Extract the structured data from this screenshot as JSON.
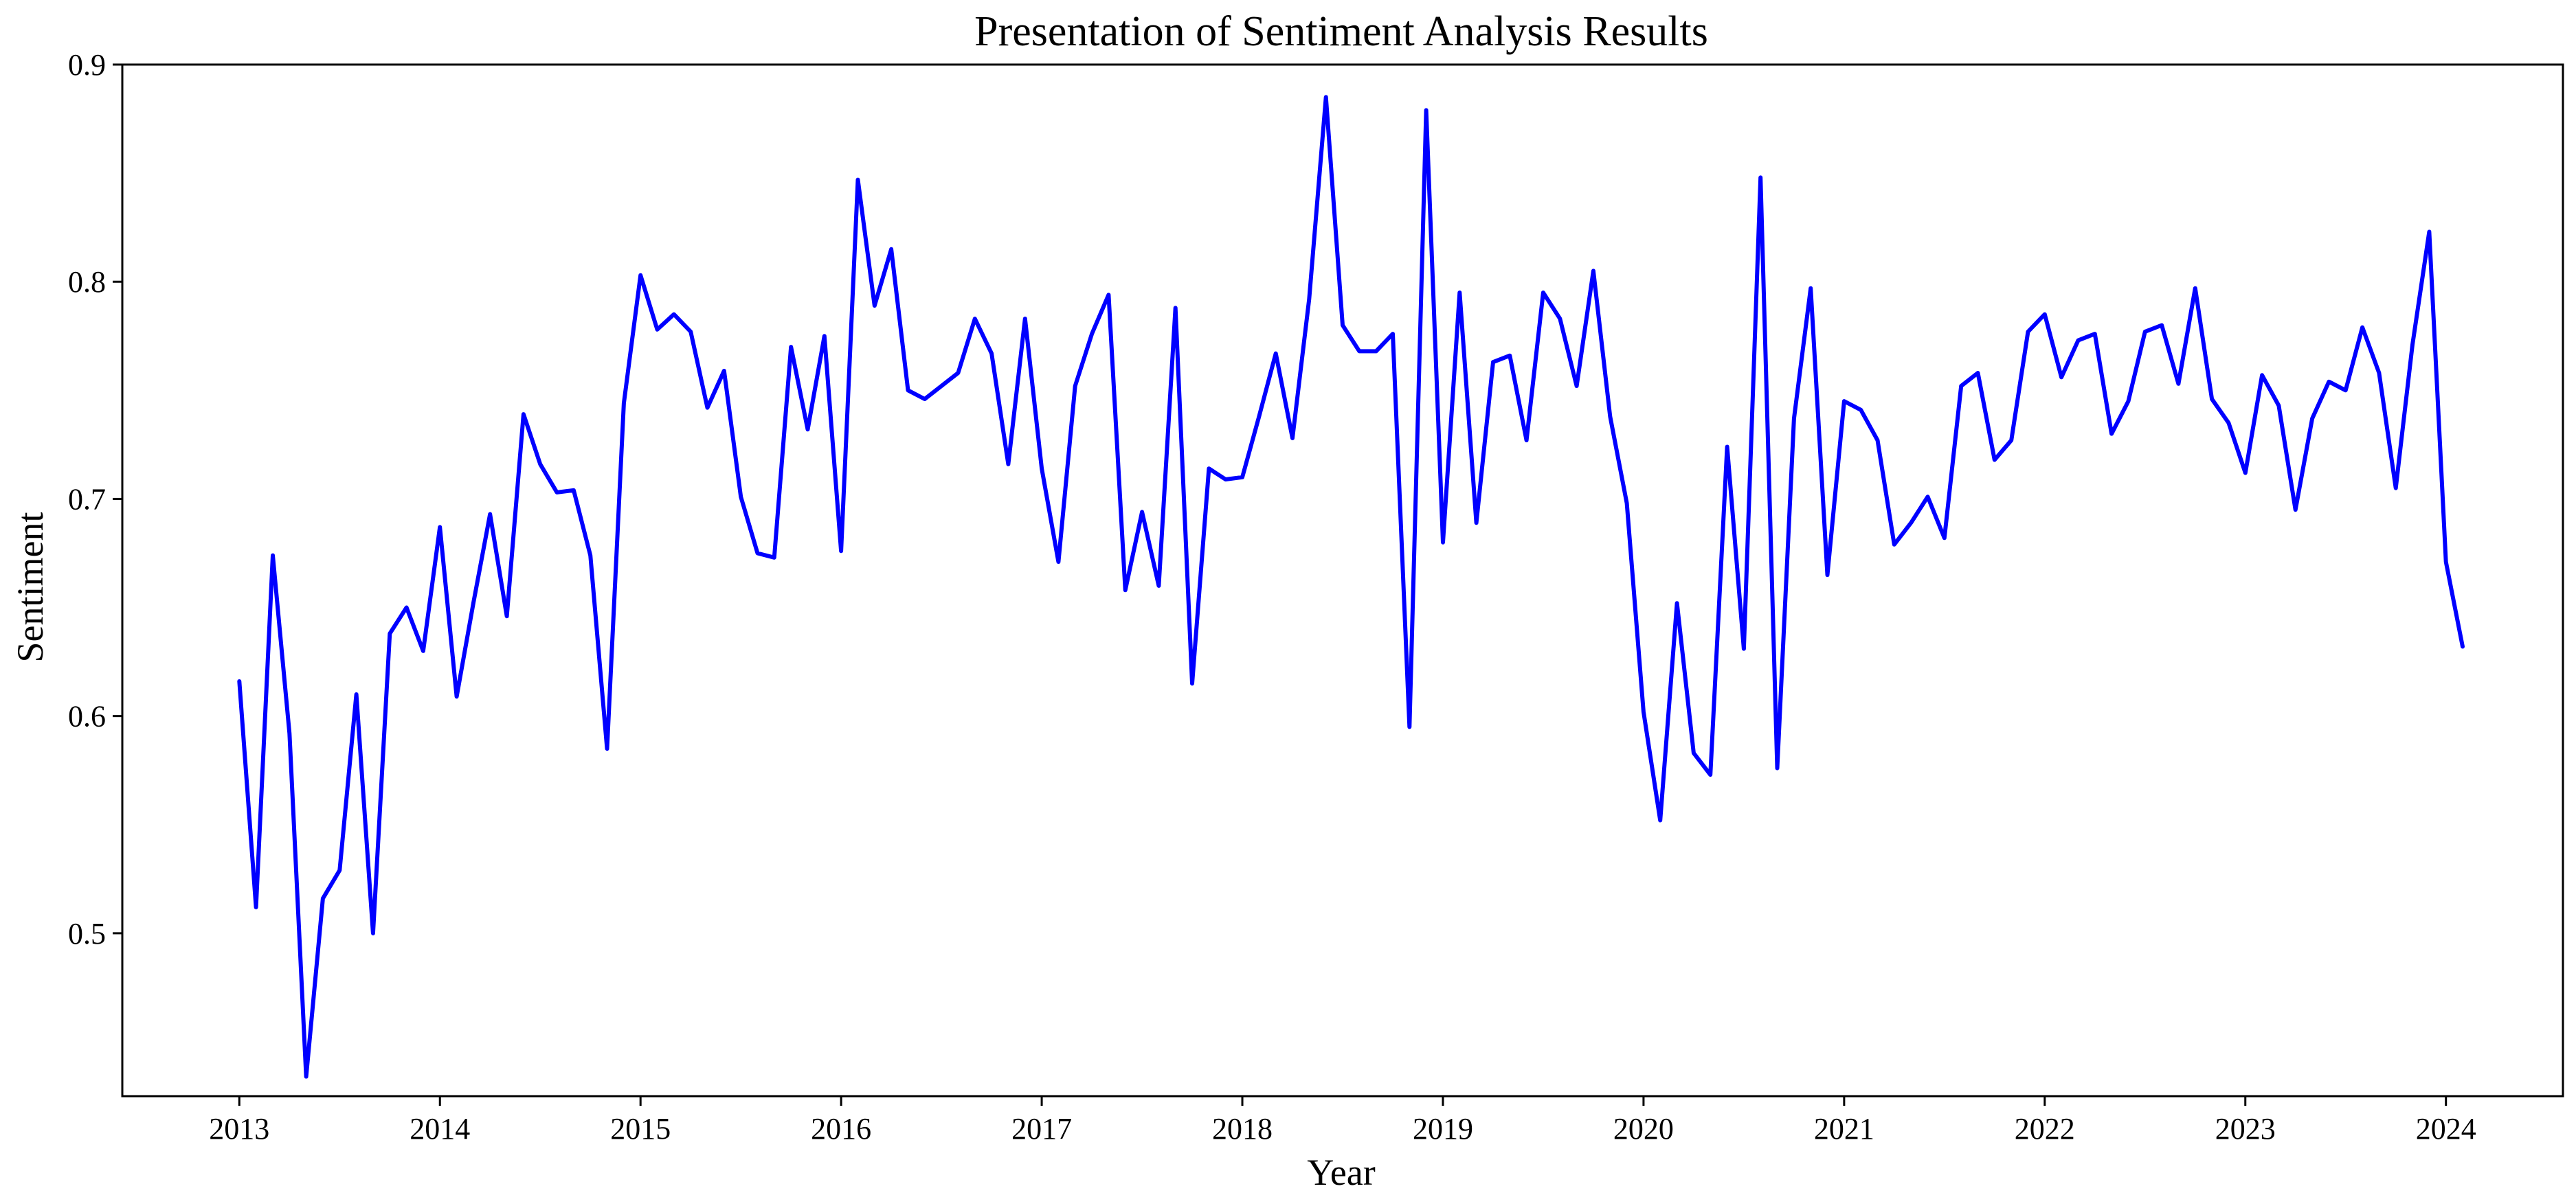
{
  "chart_data": {
    "type": "line",
    "title": "Presentation of Sentiment Analysis Results",
    "xlabel": "Year",
    "ylabel": "Sentiment",
    "xlim": [
      "2012-06",
      "2024-08"
    ],
    "ylim": [
      0.425,
      0.9
    ],
    "x_ticks": [
      "2013",
      "2014",
      "2015",
      "2016",
      "2017",
      "2018",
      "2019",
      "2020",
      "2021",
      "2022",
      "2023",
      "2024"
    ],
    "y_ticks": [
      "0.5",
      "0.6",
      "0.7",
      "0.8",
      "0.9"
    ],
    "grid": false,
    "series": [
      {
        "color": "#0000ff",
        "x": [
          "2013-01",
          "2013-02",
          "2013-03",
          "2013-04",
          "2013-05",
          "2013-06",
          "2013-07",
          "2013-08",
          "2013-09",
          "2013-10",
          "2013-11",
          "2013-12",
          "2014-01",
          "2014-02",
          "2014-03",
          "2014-04",
          "2014-05",
          "2014-06",
          "2014-07",
          "2014-08",
          "2014-09",
          "2014-10",
          "2014-11",
          "2014-12",
          "2015-01",
          "2015-02",
          "2015-03",
          "2015-04",
          "2015-05",
          "2015-06",
          "2015-07",
          "2015-08",
          "2015-09",
          "2015-10",
          "2015-11",
          "2015-12",
          "2016-01",
          "2016-02",
          "2016-03",
          "2016-04",
          "2016-05",
          "2016-06",
          "2016-07",
          "2016-08",
          "2016-09",
          "2016-10",
          "2016-11",
          "2016-12",
          "2017-01",
          "2017-02",
          "2017-03",
          "2017-04",
          "2017-05",
          "2017-06",
          "2017-07",
          "2017-08",
          "2017-09",
          "2017-10",
          "2017-11",
          "2017-12",
          "2018-01",
          "2018-02",
          "2018-03",
          "2018-04",
          "2018-05",
          "2018-06",
          "2018-07",
          "2018-08",
          "2018-09",
          "2018-10",
          "2018-11",
          "2018-12",
          "2019-01",
          "2019-02",
          "2019-03",
          "2019-04",
          "2019-05",
          "2019-06",
          "2019-07",
          "2019-08",
          "2019-09",
          "2019-10",
          "2019-11",
          "2019-12",
          "2020-01",
          "2020-02",
          "2020-03",
          "2020-04",
          "2020-05",
          "2020-06",
          "2020-07",
          "2020-08",
          "2020-09",
          "2020-10",
          "2020-11",
          "2020-12",
          "2021-01",
          "2021-02",
          "2021-03",
          "2021-04",
          "2021-05",
          "2021-06",
          "2021-07",
          "2021-08",
          "2021-09",
          "2021-10",
          "2021-11",
          "2021-12",
          "2022-01",
          "2022-02",
          "2022-03",
          "2022-04",
          "2022-05",
          "2022-06",
          "2022-07",
          "2022-08",
          "2022-09",
          "2022-10",
          "2022-11",
          "2022-12",
          "2023-01",
          "2023-02",
          "2023-03",
          "2023-04",
          "2023-05",
          "2023-06",
          "2023-07",
          "2023-08",
          "2023-09",
          "2023-10",
          "2023-11",
          "2023-12",
          "2024-01",
          "2024-02"
        ],
        "y": [
          0.616,
          0.512,
          0.674,
          0.592,
          0.434,
          0.516,
          0.529,
          0.61,
          0.5,
          0.638,
          0.65,
          0.63,
          0.687,
          0.609,
          0.652,
          0.693,
          0.646,
          0.739,
          0.716,
          0.703,
          0.704,
          0.674,
          0.585,
          0.744,
          0.803,
          0.778,
          0.785,
          0.777,
          0.742,
          0.759,
          0.701,
          0.675,
          0.673,
          0.77,
          0.732,
          0.775,
          0.676,
          0.847,
          0.789,
          0.815,
          0.75,
          0.746,
          0.752,
          0.758,
          0.783,
          0.767,
          0.716,
          0.783,
          0.714,
          0.671,
          0.752,
          0.776,
          0.794,
          0.658,
          0.694,
          0.66,
          0.788,
          0.615,
          0.714,
          0.709,
          0.71,
          0.738,
          0.767,
          0.728,
          0.792,
          0.885,
          0.78,
          0.768,
          0.768,
          0.776,
          0.595,
          0.879,
          0.68,
          0.795,
          0.689,
          0.763,
          0.766,
          0.727,
          0.795,
          0.783,
          0.752,
          0.805,
          0.738,
          0.698,
          0.602,
          0.552,
          0.652,
          0.583,
          0.573,
          0.724,
          0.631,
          0.848,
          0.576,
          0.737,
          0.797,
          0.665,
          0.745,
          0.741,
          0.727,
          0.679,
          0.689,
          0.701,
          0.682,
          0.752,
          0.758,
          0.718,
          0.727,
          0.777,
          0.785,
          0.756,
          0.773,
          0.776,
          0.73,
          0.745,
          0.777,
          0.78,
          0.753,
          0.797,
          0.746,
          0.735,
          0.712,
          0.757,
          0.743,
          0.695,
          0.737,
          0.754,
          0.75,
          0.779,
          0.758,
          0.705,
          0.771,
          0.823,
          0.671,
          0.632
        ]
      }
    ]
  }
}
